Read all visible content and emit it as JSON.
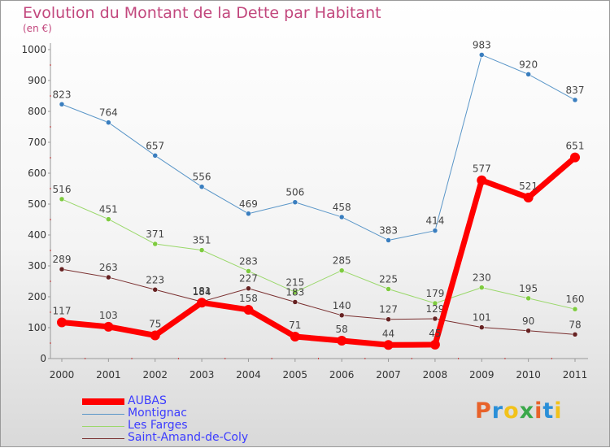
{
  "header": {
    "title": "Evolution du Montant de la Dette par Habitant",
    "unit": "(en €)"
  },
  "logo": {
    "text": "Proxiti",
    "colors": [
      "#e8622a",
      "#2a8fd8",
      "#f2c21a",
      "#3aa84a",
      "#e8622a",
      "#2a8fd8",
      "#f2c21a"
    ]
  },
  "chart_data": {
    "type": "line",
    "title": "Evolution du Montant de la Dette par Habitant",
    "ylabel": "(en €)",
    "ylim": [
      0,
      1000
    ],
    "yticks": [
      0,
      100,
      200,
      300,
      400,
      500,
      600,
      700,
      800,
      900,
      1000
    ],
    "grid": false,
    "legend_position": "bottom-left",
    "x": [
      "2000",
      "2001",
      "2002",
      "2003",
      "2004",
      "2005",
      "2006",
      "2007",
      "2008",
      "2009",
      "2010",
      "2011"
    ],
    "series": [
      {
        "name": "Montignac",
        "color": "#5a96c8",
        "dot": "#3a7ebf",
        "width": 1,
        "r": 3,
        "values": [
          823,
          764,
          657,
          556,
          469,
          506,
          458,
          383,
          414,
          983,
          920,
          837
        ]
      },
      {
        "name": "Les Farges",
        "color": "#9ad86a",
        "dot": "#7ecb3f",
        "width": 1,
        "r": 3,
        "values": [
          516,
          451,
          371,
          351,
          283,
          215,
          285,
          225,
          179,
          230,
          195,
          160
        ]
      },
      {
        "name": "Saint-Amand-de-Coly",
        "color": "#7a3030",
        "dot": "#662222",
        "width": 1,
        "r": 3,
        "values": [
          289,
          263,
          223,
          184,
          227,
          183,
          140,
          127,
          129,
          101,
          90,
          78
        ]
      },
      {
        "name": "AUBAS",
        "color": "#ff0000",
        "dot": "#ff0000",
        "width": 7,
        "r": 6,
        "values": [
          117,
          103,
          75,
          181,
          158,
          71,
          58,
          44,
          45,
          577,
          521,
          651
        ]
      }
    ]
  }
}
